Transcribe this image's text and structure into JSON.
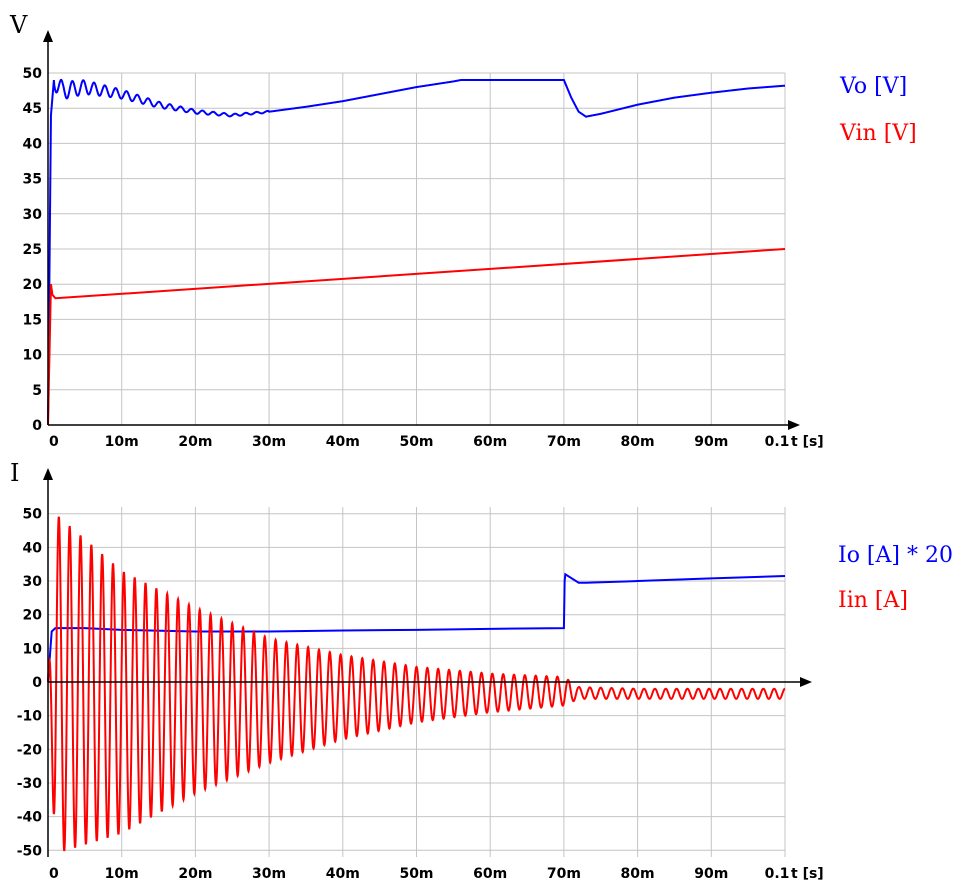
{
  "chart_data": [
    {
      "type": "line",
      "title": "",
      "ylabel": "V",
      "xlabel": "t [s]",
      "xlim": [
        0,
        0.1
      ],
      "ylim": [
        0,
        50
      ],
      "grid": true,
      "legend_position": "right",
      "x_ticks": [
        {
          "value": 0,
          "label": "0"
        },
        {
          "value": 0.01,
          "label": "10m"
        },
        {
          "value": 0.02,
          "label": "20m"
        },
        {
          "value": 0.03,
          "label": "30m"
        },
        {
          "value": 0.04,
          "label": "40m"
        },
        {
          "value": 0.05,
          "label": "50m"
        },
        {
          "value": 0.06,
          "label": "60m"
        },
        {
          "value": 0.07,
          "label": "70m"
        },
        {
          "value": 0.08,
          "label": "80m"
        },
        {
          "value": 0.09,
          "label": "90m"
        },
        {
          "value": 0.1,
          "label": "0.1"
        }
      ],
      "y_ticks": [
        {
          "value": 0,
          "label": "0"
        },
        {
          "value": 5,
          "label": "5"
        },
        {
          "value": 10,
          "label": "10"
        },
        {
          "value": 15,
          "label": "15"
        },
        {
          "value": 20,
          "label": "20"
        },
        {
          "value": 25,
          "label": "25"
        },
        {
          "value": 30,
          "label": "30"
        },
        {
          "value": 35,
          "label": "35"
        },
        {
          "value": 40,
          "label": "40"
        },
        {
          "value": 45,
          "label": "45"
        },
        {
          "value": 50,
          "label": "50"
        }
      ],
      "series": [
        {
          "name": "Vo [V]",
          "color": "#0000ff",
          "x": [
            0,
            0.0004,
            0.0008,
            0.002,
            0.005,
            0.01,
            0.015,
            0.02,
            0.025,
            0.03,
            0.035,
            0.04,
            0.045,
            0.05,
            0.055,
            0.056,
            0.06,
            0.065,
            0.07,
            0.071,
            0.072,
            0.073,
            0.075,
            0.08,
            0.085,
            0.09,
            0.095,
            0.1
          ],
          "y": [
            0,
            44,
            49,
            47.5,
            48,
            47,
            45.5,
            44.5,
            44.0,
            44.5,
            45.2,
            46,
            47,
            48,
            48.8,
            49,
            49,
            49,
            49,
            46.5,
            44.5,
            43.8,
            44.2,
            45.5,
            46.5,
            47.2,
            47.8,
            48.2
          ]
        },
        {
          "name": "Vin [V]",
          "color": "#ff0000",
          "x": [
            0,
            0.0002,
            0.0004,
            0.0006,
            0.001,
            0.1
          ],
          "y": [
            0,
            10,
            20,
            18.5,
            18,
            25
          ]
        }
      ]
    },
    {
      "type": "line",
      "title": "",
      "ylabel": "I",
      "xlabel": "t [s]",
      "xlim": [
        0,
        0.1
      ],
      "ylim": [
        -52,
        52
      ],
      "grid": true,
      "legend_position": "right",
      "x_ticks": [
        {
          "value": 0,
          "label": "0"
        },
        {
          "value": 0.01,
          "label": "10m"
        },
        {
          "value": 0.02,
          "label": "20m"
        },
        {
          "value": 0.03,
          "label": "30m"
        },
        {
          "value": 0.04,
          "label": "40m"
        },
        {
          "value": 0.05,
          "label": "50m"
        },
        {
          "value": 0.06,
          "label": "60m"
        },
        {
          "value": 0.07,
          "label": "70m"
        },
        {
          "value": 0.08,
          "label": "80m"
        },
        {
          "value": 0.09,
          "label": "90m"
        },
        {
          "value": 0.1,
          "label": "0.1"
        }
      ],
      "y_ticks": [
        {
          "value": -50,
          "label": "-50"
        },
        {
          "value": -40,
          "label": "-40"
        },
        {
          "value": -30,
          "label": "-30"
        },
        {
          "value": -20,
          "label": "-20"
        },
        {
          "value": -10,
          "label": "-10"
        },
        {
          "value": 0,
          "label": "0"
        },
        {
          "value": 10,
          "label": "10"
        },
        {
          "value": 20,
          "label": "20"
        },
        {
          "value": 30,
          "label": "30"
        },
        {
          "value": 40,
          "label": "40"
        },
        {
          "value": 50,
          "label": "50"
        }
      ],
      "series": [
        {
          "name": "Io [A] * 20",
          "color": "#0000ff",
          "x": [
            0,
            0.0005,
            0.001,
            0.005,
            0.01,
            0.02,
            0.03,
            0.04,
            0.05,
            0.06,
            0.07,
            0.0701,
            0.0702,
            0.072,
            0.073,
            0.08,
            0.09,
            0.1
          ],
          "y": [
            0,
            15,
            16,
            16,
            15.5,
            15,
            15,
            15.3,
            15.5,
            15.8,
            16,
            30,
            32,
            29.5,
            29.5,
            30,
            30.8,
            31.5
          ]
        },
        {
          "name": "Iin [A]",
          "color": "#ff0000",
          "envelope": {
            "x": [
              0,
              0.001,
              0.01,
              0.02,
              0.03,
              0.04,
              0.05,
              0.06,
              0.07,
              0.072,
              0.08,
              0.1
            ],
            "upper": [
              0,
              50,
              33,
              22,
              13,
              8,
              4.5,
              2.5,
              1.5,
              -1.5,
              -2,
              -2
            ],
            "lower": [
              0,
              -51,
              -45,
              -33,
              -24,
              -17,
              -12,
              -9,
              -7,
              -5,
              -5,
              -5
            ]
          }
        }
      ]
    }
  ]
}
